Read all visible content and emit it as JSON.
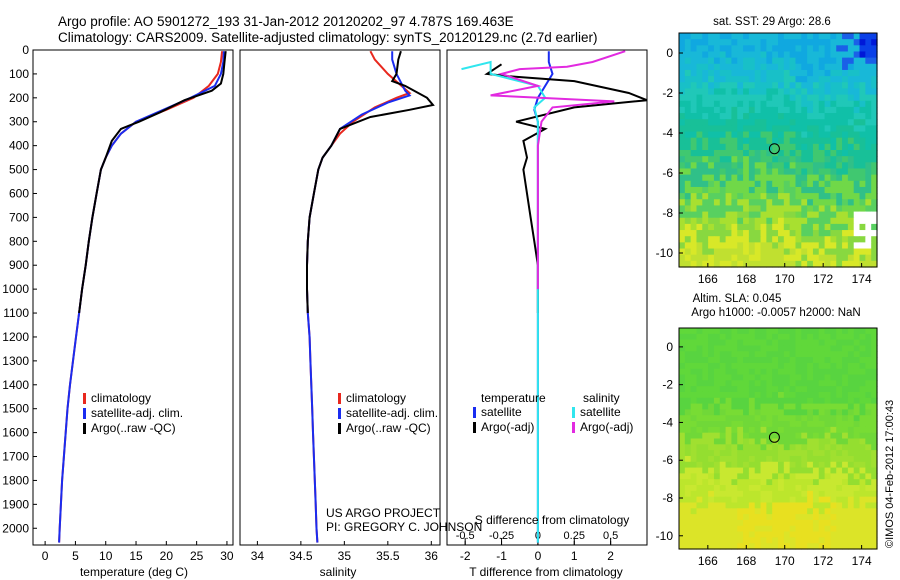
{
  "header": {
    "line1": "Argo profile: AO 5901272_193 31-Jan-2012 20120202_97 4.787S 169.463E",
    "line2": "Climatology: CARS2009. Satellite-adjusted climatology: synTS_20120129.nc (2.7d earlier)"
  },
  "colors": {
    "clim": "#e8281e",
    "sat": "#1a2cf0",
    "argo": "#000000",
    "salsat": "#30e6ee",
    "salargo": "#e22ae0"
  },
  "chart_data": [
    {
      "type": "line",
      "id": "temperature",
      "xlabel": "temperature (deg C)",
      "ylabel": "",
      "xlim": [
        -2,
        31
      ],
      "ylim": [
        2070,
        0
      ],
      "xticks": [
        "0",
        "5",
        "10",
        "15",
        "20",
        "25",
        "30"
      ],
      "yticks": [
        "0",
        "100",
        "200",
        "300",
        "400",
        "500",
        "600",
        "700",
        "800",
        "900",
        "1000",
        "1100",
        "1200",
        "1300",
        "1400",
        "1500",
        "1600",
        "1700",
        "1800",
        "1900",
        "2000"
      ],
      "legend": {
        "position": "lower-middle",
        "entries": [
          "climatology",
          "satellite-adj. clim.",
          "Argo(..raw -QC)"
        ]
      },
      "series": [
        {
          "name": "climatology",
          "color_key": "clim",
          "points": [
            [
              29.2,
              5
            ],
            [
              29,
              50
            ],
            [
              28.5,
              100
            ],
            [
              27,
              150
            ],
            [
              24.5,
              200
            ],
            [
              20,
              250
            ],
            [
              15,
              300
            ],
            [
              12.5,
              350
            ],
            [
              11,
              400
            ],
            [
              10,
              450
            ],
            [
              9.2,
              500
            ],
            [
              8.5,
              600
            ],
            [
              7.8,
              700
            ],
            [
              7.2,
              800
            ],
            [
              6.7,
              900
            ],
            [
              6.1,
              1000
            ],
            [
              5.6,
              1100
            ],
            [
              5.1,
              1200
            ],
            [
              4.6,
              1300
            ],
            [
              4.1,
              1400
            ],
            [
              3.7,
              1500
            ],
            [
              3.4,
              1600
            ],
            [
              3.1,
              1700
            ],
            [
              2.8,
              1800
            ],
            [
              2.6,
              1900
            ],
            [
              2.4,
              2000
            ],
            [
              2.3,
              2060
            ]
          ]
        },
        {
          "name": "satellite-adj. clim.",
          "color_key": "sat",
          "points": [
            [
              29.5,
              5
            ],
            [
              29.4,
              50
            ],
            [
              29,
              100
            ],
            [
              28,
              150
            ],
            [
              24,
              200
            ],
            [
              19.5,
              250
            ],
            [
              15,
              300
            ],
            [
              12.5,
              350
            ],
            [
              11,
              400
            ],
            [
              10,
              450
            ],
            [
              9.2,
              500
            ],
            [
              8.5,
              600
            ],
            [
              7.8,
              700
            ],
            [
              7.2,
              800
            ],
            [
              6.7,
              900
            ],
            [
              6.1,
              1000
            ],
            [
              5.6,
              1100
            ],
            [
              5.1,
              1200
            ],
            [
              4.6,
              1300
            ],
            [
              4.1,
              1400
            ],
            [
              3.7,
              1500
            ],
            [
              3.4,
              1600
            ],
            [
              3.1,
              1700
            ],
            [
              2.8,
              1800
            ],
            [
              2.6,
              1900
            ],
            [
              2.4,
              2000
            ],
            [
              2.3,
              2060
            ]
          ]
        },
        {
          "name": "Argo(..raw -QC)",
          "color_key": "argo",
          "points": [
            [
              29.8,
              5
            ],
            [
              29.6,
              50
            ],
            [
              29.4,
              100
            ],
            [
              29,
              140
            ],
            [
              27.5,
              170
            ],
            [
              23,
              210
            ],
            [
              19,
              260
            ],
            [
              15.5,
              300
            ],
            [
              12.5,
              330
            ],
            [
              11,
              380
            ],
            [
              10,
              450
            ],
            [
              9.2,
              500
            ],
            [
              8.5,
              600
            ],
            [
              7.8,
              700
            ],
            [
              7.2,
              800
            ],
            [
              6.7,
              900
            ],
            [
              6.1,
              1000
            ],
            [
              5.6,
              1100
            ]
          ]
        }
      ]
    },
    {
      "type": "line",
      "id": "salinity",
      "xlabel": "salinity",
      "xlim": [
        33.8,
        36.1
      ],
      "ylim": [
        2070,
        0
      ],
      "xticks": [
        "34",
        "34.5",
        "35",
        "35.5",
        "36"
      ],
      "legend": {
        "position": "lower-right",
        "entries": [
          "climatology",
          "satellite-adj. clim.",
          "Argo(..raw -QC)"
        ]
      },
      "annotations": [
        "US ARGO PROJECT",
        "PI: GREGORY C. JOHNSON"
      ],
      "series": [
        {
          "name": "climatology",
          "color_key": "clim",
          "points": [
            [
              35.3,
              5
            ],
            [
              35.35,
              40
            ],
            [
              35.5,
              100
            ],
            [
              35.75,
              180
            ],
            [
              35.6,
              200
            ],
            [
              35.35,
              240
            ],
            [
              35.1,
              300
            ],
            [
              34.95,
              350
            ],
            [
              34.85,
              400
            ],
            [
              34.75,
              450
            ],
            [
              34.7,
              500
            ],
            [
              34.65,
              600
            ],
            [
              34.6,
              700
            ],
            [
              34.58,
              800
            ],
            [
              34.57,
              900
            ],
            [
              34.57,
              1000
            ],
            [
              34.58,
              1100
            ],
            [
              34.6,
              1200
            ],
            [
              34.61,
              1300
            ],
            [
              34.62,
              1400
            ],
            [
              34.63,
              1500
            ],
            [
              34.64,
              1600
            ],
            [
              34.65,
              1700
            ],
            [
              34.66,
              1800
            ],
            [
              34.67,
              1900
            ],
            [
              34.68,
              2000
            ],
            [
              34.69,
              2060
            ]
          ]
        },
        {
          "name": "satellite-adj. clim.",
          "color_key": "sat",
          "points": [
            [
              35.55,
              5
            ],
            [
              35.55,
              40
            ],
            [
              35.6,
              100
            ],
            [
              35.7,
              170
            ],
            [
              35.75,
              190
            ],
            [
              35.5,
              220
            ],
            [
              35.2,
              270
            ],
            [
              34.95,
              330
            ],
            [
              34.85,
              400
            ],
            [
              34.75,
              450
            ],
            [
              34.7,
              500
            ],
            [
              34.65,
              600
            ],
            [
              34.6,
              700
            ],
            [
              34.58,
              800
            ],
            [
              34.57,
              900
            ],
            [
              34.57,
              1000
            ],
            [
              34.58,
              1100
            ],
            [
              34.6,
              1200
            ],
            [
              34.61,
              1300
            ],
            [
              34.62,
              1400
            ],
            [
              34.63,
              1500
            ],
            [
              34.64,
              1600
            ],
            [
              34.65,
              1700
            ],
            [
              34.66,
              1800
            ],
            [
              34.67,
              1900
            ],
            [
              34.68,
              2000
            ],
            [
              34.69,
              2060
            ]
          ]
        },
        {
          "name": "Argo(..raw -QC)",
          "color_key": "argo",
          "points": [
            [
              35.65,
              5
            ],
            [
              35.62,
              40
            ],
            [
              35.6,
              100
            ],
            [
              35.55,
              130
            ],
            [
              35.7,
              150
            ],
            [
              35.95,
              200
            ],
            [
              36.02,
              230
            ],
            [
              35.75,
              250
            ],
            [
              35.3,
              280
            ],
            [
              34.95,
              330
            ],
            [
              34.85,
              400
            ],
            [
              34.75,
              450
            ],
            [
              34.7,
              500
            ],
            [
              34.65,
              600
            ],
            [
              34.6,
              700
            ],
            [
              34.58,
              800
            ],
            [
              34.57,
              900
            ],
            [
              34.57,
              1000
            ],
            [
              34.58,
              1100
            ]
          ]
        }
      ]
    },
    {
      "type": "line",
      "id": "difference",
      "xlabel": "T difference from climatology",
      "xlabel_top": "S difference from climatology",
      "xlim": [
        -2.5,
        3
      ],
      "ylim": [
        2070,
        0
      ],
      "xticks": [
        "-2",
        "-1",
        "0",
        "1",
        "2"
      ],
      "xticks_top": [
        "-0.5",
        "-0.25",
        "0",
        "0.25",
        "0.5"
      ],
      "legend": {
        "position": "lower-middle",
        "titles": [
          "temperature",
          "salinity"
        ],
        "entries": [
          "satellite",
          "Argo(-adj)",
          "satellite",
          "Argo(-adj)"
        ]
      },
      "series": [
        {
          "name": "T satellite",
          "color_key": "sat",
          "points": [
            [
              0.3,
              5
            ],
            [
              0.3,
              50
            ],
            [
              0.4,
              100
            ],
            [
              0.2,
              150
            ],
            [
              0,
              200
            ],
            [
              -0.1,
              250
            ],
            [
              0,
              300
            ],
            [
              0,
              400
            ],
            [
              0,
              600
            ],
            [
              0,
              1000
            ],
            [
              0,
              2060
            ]
          ]
        },
        {
          "name": "T Argo(-adj)",
          "color_key": "argo",
          "points": [
            [
              -1,
              60
            ],
            [
              -1.4,
              100
            ],
            [
              -0.8,
              110
            ],
            [
              1,
              130
            ],
            [
              2.5,
              180
            ],
            [
              3,
              210
            ],
            [
              1,
              240
            ],
            [
              -0.6,
              300
            ],
            [
              0.2,
              330
            ],
            [
              -0.4,
              380
            ],
            [
              -0.3,
              450
            ],
            [
              -0.4,
              500
            ],
            [
              -0.3,
              600
            ],
            [
              -0.2,
              700
            ],
            [
              -0.1,
              800
            ],
            [
              0,
              900
            ],
            [
              0,
              1000
            ],
            [
              0,
              1100
            ]
          ]
        },
        {
          "name": "S satellite",
          "color_key": "salsat",
          "points": [
            [
              -2.1,
              80
            ],
            [
              -1.3,
              50
            ],
            [
              -1.3,
              100
            ],
            [
              0,
              150
            ],
            [
              0.2,
              200
            ],
            [
              -0.1,
              240
            ],
            [
              0,
              300
            ],
            [
              0,
              500
            ],
            [
              0,
              1000
            ],
            [
              0,
              2060
            ]
          ]
        },
        {
          "name": "S Argo(-adj)",
          "color_key": "salargo",
          "points": [
            [
              2.4,
              5
            ],
            [
              1.5,
              50
            ],
            [
              0.8,
              70
            ],
            [
              -0.5,
              80
            ],
            [
              -1,
              100
            ],
            [
              0,
              150
            ],
            [
              -1.3,
              190
            ],
            [
              2.1,
              215
            ],
            [
              0.4,
              240
            ],
            [
              0.1,
              300
            ],
            [
              0,
              400
            ],
            [
              0,
              1000
            ]
          ]
        }
      ]
    },
    {
      "type": "heatmap",
      "id": "sst-map",
      "title": "sat. SST: 29 Argo: 28.6",
      "xticks": [
        "166",
        "168",
        "170",
        "172",
        "174"
      ],
      "yticks": [
        "0",
        "-2",
        "-4",
        "-6",
        "-8",
        "-10"
      ],
      "xlim": [
        164.5,
        174.8
      ],
      "ylim": [
        -10.7,
        1
      ]
    },
    {
      "type": "heatmap",
      "id": "sla-map",
      "title_line1": "Altim. SLA: 0.045",
      "title_line2": "Argo h1000: -0.0057 h2000: NaN",
      "xticks": [
        "166",
        "168",
        "170",
        "172",
        "174"
      ],
      "yticks": [
        "0",
        "-2",
        "-4",
        "-6",
        "-8",
        "-10"
      ],
      "xlim": [
        164.5,
        174.8
      ],
      "ylim": [
        -10.7,
        1
      ]
    }
  ],
  "marker": {
    "lon": 169.463,
    "lat": -4.787
  },
  "credit": "©IMOS 04-Feb-2012 17:00:43"
}
